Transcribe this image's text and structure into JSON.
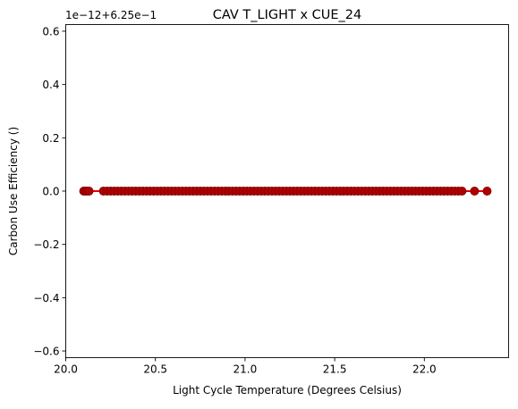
{
  "chart_data": {
    "type": "scatter",
    "title": "CAV T_LIGHT x CUE_24",
    "xlabel": "Light Cycle Temperature (Degrees Celsius)",
    "ylabel": "Carbon Use Efficiency ()",
    "offset_text": "1e−12+6.25e−1",
    "xlim": [
      20.0,
      22.47
    ],
    "ylim": [
      -0.625,
      0.625
    ],
    "xticks": [
      20.0,
      20.5,
      21.0,
      21.5,
      22.0
    ],
    "xtick_labels": [
      "20.0",
      "20.5",
      "21.0",
      "21.5",
      "22.0"
    ],
    "yticks": [
      -0.6,
      -0.4,
      -0.2,
      0.0,
      0.2,
      0.4,
      0.6
    ],
    "ytick_labels": [
      "−0.6",
      "−0.4",
      "−0.2",
      "0.0",
      "0.2",
      "0.4",
      "0.6"
    ],
    "grid": false,
    "series": [
      {
        "marker_color": "#b00000",
        "line_color": "#e00000",
        "x": [
          20.1,
          20.11,
          20.12,
          20.13,
          20.21,
          20.23,
          20.25,
          20.27,
          20.29,
          20.31,
          20.33,
          20.35,
          20.37,
          20.39,
          20.41,
          20.43,
          20.45,
          20.47,
          20.49,
          20.51,
          20.53,
          20.55,
          20.57,
          20.59,
          20.61,
          20.63,
          20.65,
          20.67,
          20.69,
          20.71,
          20.73,
          20.75,
          20.77,
          20.79,
          20.81,
          20.83,
          20.85,
          20.87,
          20.89,
          20.91,
          20.93,
          20.95,
          20.97,
          20.99,
          21.01,
          21.03,
          21.05,
          21.07,
          21.09,
          21.11,
          21.13,
          21.15,
          21.17,
          21.19,
          21.21,
          21.23,
          21.25,
          21.27,
          21.29,
          21.31,
          21.33,
          21.35,
          21.37,
          21.39,
          21.41,
          21.43,
          21.45,
          21.47,
          21.49,
          21.51,
          21.53,
          21.55,
          21.57,
          21.59,
          21.61,
          21.63,
          21.65,
          21.67,
          21.69,
          21.71,
          21.73,
          21.75,
          21.77,
          21.79,
          21.81,
          21.83,
          21.85,
          21.87,
          21.89,
          21.91,
          21.93,
          21.95,
          21.97,
          21.99,
          22.01,
          22.03,
          22.05,
          22.07,
          22.09,
          22.11,
          22.13,
          22.15,
          22.17,
          22.19,
          22.21,
          22.28,
          22.35
        ],
        "y_value": 0.0
      }
    ]
  }
}
